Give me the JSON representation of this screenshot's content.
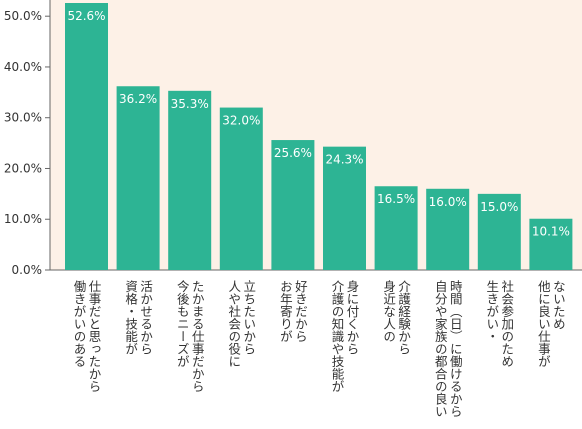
{
  "chart_data": {
    "type": "bar",
    "categories": [
      [
        "働きがいのある",
        "仕事だと思ったから"
      ],
      [
        "資格・技能が",
        "活かせるから"
      ],
      [
        "今後もニーズが",
        "たかまる仕事だから"
      ],
      [
        "人や社会の役に",
        "立ちたいから"
      ],
      [
        "お年寄りが",
        "好きだから"
      ],
      [
        "介護の知識や技能が",
        "身に付くから"
      ],
      [
        "身近な人の",
        "介護経験から"
      ],
      [
        "自分や家族の都合の良い",
        "時間（日）に働けるから"
      ],
      [
        "生きがい・",
        "社会参加のため"
      ],
      [
        "他に良い仕事が",
        "ないため"
      ]
    ],
    "values": [
      52.6,
      36.2,
      35.3,
      32.0,
      25.6,
      24.3,
      16.5,
      16.0,
      15.0,
      10.1
    ],
    "value_labels": [
      "52.6%",
      "36.2%",
      "35.3%",
      "32.0%",
      "25.6%",
      "24.3%",
      "16.5%",
      "16.0%",
      "15.0%",
      "10.1%"
    ],
    "yticks": [
      0,
      10,
      20,
      30,
      40,
      50
    ],
    "ytick_labels": [
      "0.0%",
      "10.0%",
      "20.0%",
      "30.0%",
      "40.0%",
      "50.0%"
    ],
    "ylim": [
      0,
      52.6
    ],
    "title": "",
    "xlabel": "",
    "ylabel": "",
    "grid": false,
    "legend": "none",
    "colors": {
      "bar": "#2db494",
      "plot_background": "#fdf1e7",
      "axis": "#666666",
      "tick_text": "#333333",
      "data_label": "#ffffff"
    }
  }
}
